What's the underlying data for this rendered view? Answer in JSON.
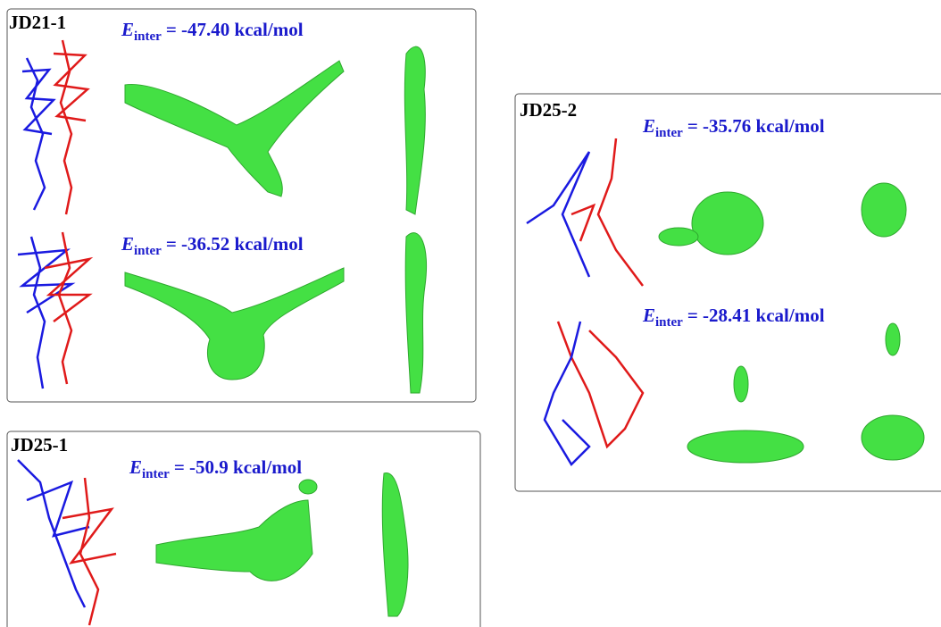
{
  "panels": [
    {
      "label": "JD21-1",
      "energies": [
        {
          "symbol": "E",
          "subscript": "inter",
          "text": "= -47.40 kcal/mol"
        },
        {
          "symbol": "E",
          "subscript": "inter",
          "text": "= -36.52 kcal/mol"
        }
      ]
    },
    {
      "label": "JD25-2",
      "energies": [
        {
          "symbol": "E",
          "subscript": "inter",
          "text": "= -35.76 kcal/mol"
        },
        {
          "symbol": "E",
          "subscript": "inter",
          "text": "= -28.41 kcal/mol"
        }
      ]
    },
    {
      "label": "JD25-1",
      "energies": [
        {
          "symbol": "E",
          "subscript": "inter",
          "text": "= -50.9 kcal/mol"
        }
      ]
    }
  ]
}
